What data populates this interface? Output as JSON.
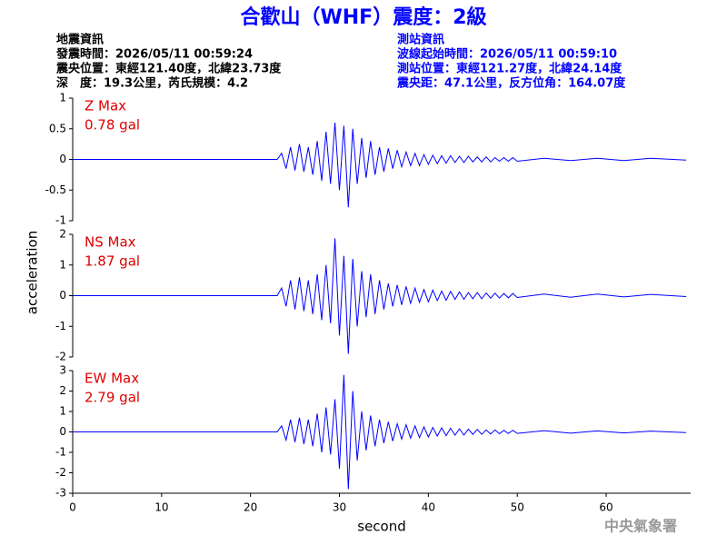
{
  "header": {
    "title": "合歡山（WHF）震度：2級",
    "quake": [
      "地震資訊",
      "發震時間：2026/05/11 00:59:24",
      "震央位置：東經121.40度，北緯23.73度",
      "深　度：19.3公里，芮氏規模：4.2"
    ],
    "station": [
      "測站資訊",
      "波線起始時間：2026/05/11 00:59:10",
      "測站位置：東經121.27度，北緯24.14度",
      "震央距：47.1公里，反方位角：164.07度"
    ]
  },
  "y_label": "acceleration",
  "footer": "中央氣象署",
  "chart_data": [
    {
      "type": "line",
      "annotation": [
        "Z Max",
        "0.78 gal"
      ],
      "color": "#0000ff",
      "xlim": [
        0,
        69.5
      ],
      "ylim": [
        -1,
        1
      ],
      "yticks": [
        -1,
        -0.5,
        0,
        0.5,
        1
      ],
      "x": [
        0,
        23,
        23.5,
        24,
        24.5,
        25,
        25.5,
        26,
        26.5,
        27,
        27.5,
        28,
        28.5,
        29,
        29.5,
        30,
        30.5,
        31,
        31.5,
        32,
        32.5,
        33,
        33.5,
        34,
        34.5,
        35,
        35.5,
        36,
        36.5,
        37,
        37.5,
        38,
        38.5,
        39,
        39.5,
        40,
        40.5,
        41,
        41.5,
        42,
        42.5,
        43,
        43.5,
        44,
        44.5,
        45,
        45.5,
        46,
        46.5,
        47,
        47.5,
        48,
        48.5,
        49,
        49.5,
        50,
        53,
        56,
        59,
        62,
        65,
        69
      ],
      "values": [
        0,
        0,
        0.1,
        -0.15,
        0.2,
        -0.18,
        0.25,
        -0.2,
        0.2,
        -0.25,
        0.3,
        -0.35,
        0.45,
        -0.4,
        0.6,
        -0.5,
        0.55,
        -0.78,
        0.5,
        -0.4,
        0.35,
        -0.3,
        0.3,
        -0.25,
        0.2,
        -0.2,
        0.18,
        -0.15,
        0.15,
        -0.12,
        0.12,
        -0.1,
        0.1,
        -0.1,
        0.08,
        -0.08,
        0.07,
        -0.07,
        0.06,
        -0.06,
        0.06,
        -0.05,
        0.05,
        -0.05,
        0.05,
        -0.04,
        0.04,
        -0.04,
        0.04,
        -0.04,
        0.03,
        -0.03,
        0.03,
        -0.03,
        0.03,
        -0.03,
        0.02,
        -0.02,
        0.02,
        -0.02,
        0.02,
        -0.01
      ]
    },
    {
      "type": "line",
      "annotation": [
        "NS Max",
        "1.87 gal"
      ],
      "color": "#0000ff",
      "xlim": [
        0,
        69.5
      ],
      "ylim": [
        -2,
        2
      ],
      "yticks": [
        -2,
        -1,
        0,
        1,
        2
      ],
      "x": [
        0,
        23,
        23.5,
        24,
        24.5,
        25,
        25.5,
        26,
        26.5,
        27,
        27.5,
        28,
        28.5,
        29,
        29.5,
        30,
        30.5,
        31,
        31.5,
        32,
        32.5,
        33,
        33.5,
        34,
        34.5,
        35,
        35.5,
        36,
        36.5,
        37,
        37.5,
        38,
        38.5,
        39,
        39.5,
        40,
        40.5,
        41,
        41.5,
        42,
        42.5,
        43,
        43.5,
        44,
        44.5,
        45,
        45.5,
        46,
        46.5,
        47,
        47.5,
        48,
        48.5,
        49,
        49.5,
        50,
        53,
        56,
        59,
        62,
        65,
        69
      ],
      "values": [
        0,
        0,
        0.25,
        -0.35,
        0.5,
        -0.45,
        0.6,
        -0.5,
        0.5,
        -0.6,
        0.7,
        -0.8,
        1.0,
        -0.9,
        1.87,
        -1.3,
        1.3,
        -1.9,
        1.2,
        -1.0,
        0.8,
        -0.7,
        0.7,
        -0.6,
        0.5,
        -0.45,
        0.4,
        -0.35,
        0.35,
        -0.3,
        0.3,
        -0.25,
        0.25,
        -0.22,
        0.2,
        -0.2,
        0.18,
        -0.16,
        0.15,
        -0.15,
        0.14,
        -0.12,
        0.12,
        -0.12,
        0.1,
        -0.1,
        0.1,
        -0.1,
        0.09,
        -0.08,
        0.08,
        -0.08,
        0.07,
        -0.07,
        0.07,
        -0.06,
        0.05,
        -0.05,
        0.05,
        -0.04,
        0.04,
        -0.03
      ]
    },
    {
      "type": "line",
      "annotation": [
        "EW Max",
        "2.79 gal"
      ],
      "color": "#0000ff",
      "xlim": [
        0,
        69.5
      ],
      "ylim": [
        -3,
        3
      ],
      "yticks": [
        -3,
        -2,
        -1,
        0,
        1,
        2,
        3
      ],
      "xticks": [
        0,
        10,
        20,
        30,
        40,
        50,
        60
      ],
      "x_label": "second",
      "x": [
        0,
        23,
        23.5,
        24,
        24.5,
        25,
        25.5,
        26,
        26.5,
        27,
        27.5,
        28,
        28.5,
        29,
        29.5,
        30,
        30.5,
        31,
        31.5,
        32,
        32.5,
        33,
        33.5,
        34,
        34.5,
        35,
        35.5,
        36,
        36.5,
        37,
        37.5,
        38,
        38.5,
        39,
        39.5,
        40,
        40.5,
        41,
        41.5,
        42,
        42.5,
        43,
        43.5,
        44,
        44.5,
        45,
        45.5,
        46,
        46.5,
        47,
        47.5,
        48,
        48.5,
        49,
        49.5,
        50,
        53,
        56,
        59,
        62,
        65,
        69
      ],
      "values": [
        0,
        0,
        0.3,
        -0.4,
        0.6,
        -0.5,
        0.7,
        -0.6,
        0.6,
        -0.7,
        0.9,
        -1.0,
        1.2,
        -1.1,
        1.6,
        -1.8,
        2.79,
        -2.8,
        2.0,
        -1.4,
        1.0,
        -0.9,
        0.8,
        -0.7,
        0.6,
        -0.55,
        0.5,
        -0.45,
        0.4,
        -0.35,
        0.35,
        -0.3,
        0.3,
        -0.28,
        0.25,
        -0.25,
        0.22,
        -0.2,
        0.2,
        -0.18,
        0.18,
        -0.16,
        0.15,
        -0.15,
        0.14,
        -0.12,
        0.12,
        -0.12,
        0.1,
        -0.1,
        0.1,
        -0.09,
        0.08,
        -0.08,
        0.08,
        -0.07,
        0.06,
        -0.06,
        0.05,
        -0.05,
        0.04,
        -0.03
      ]
    }
  ]
}
